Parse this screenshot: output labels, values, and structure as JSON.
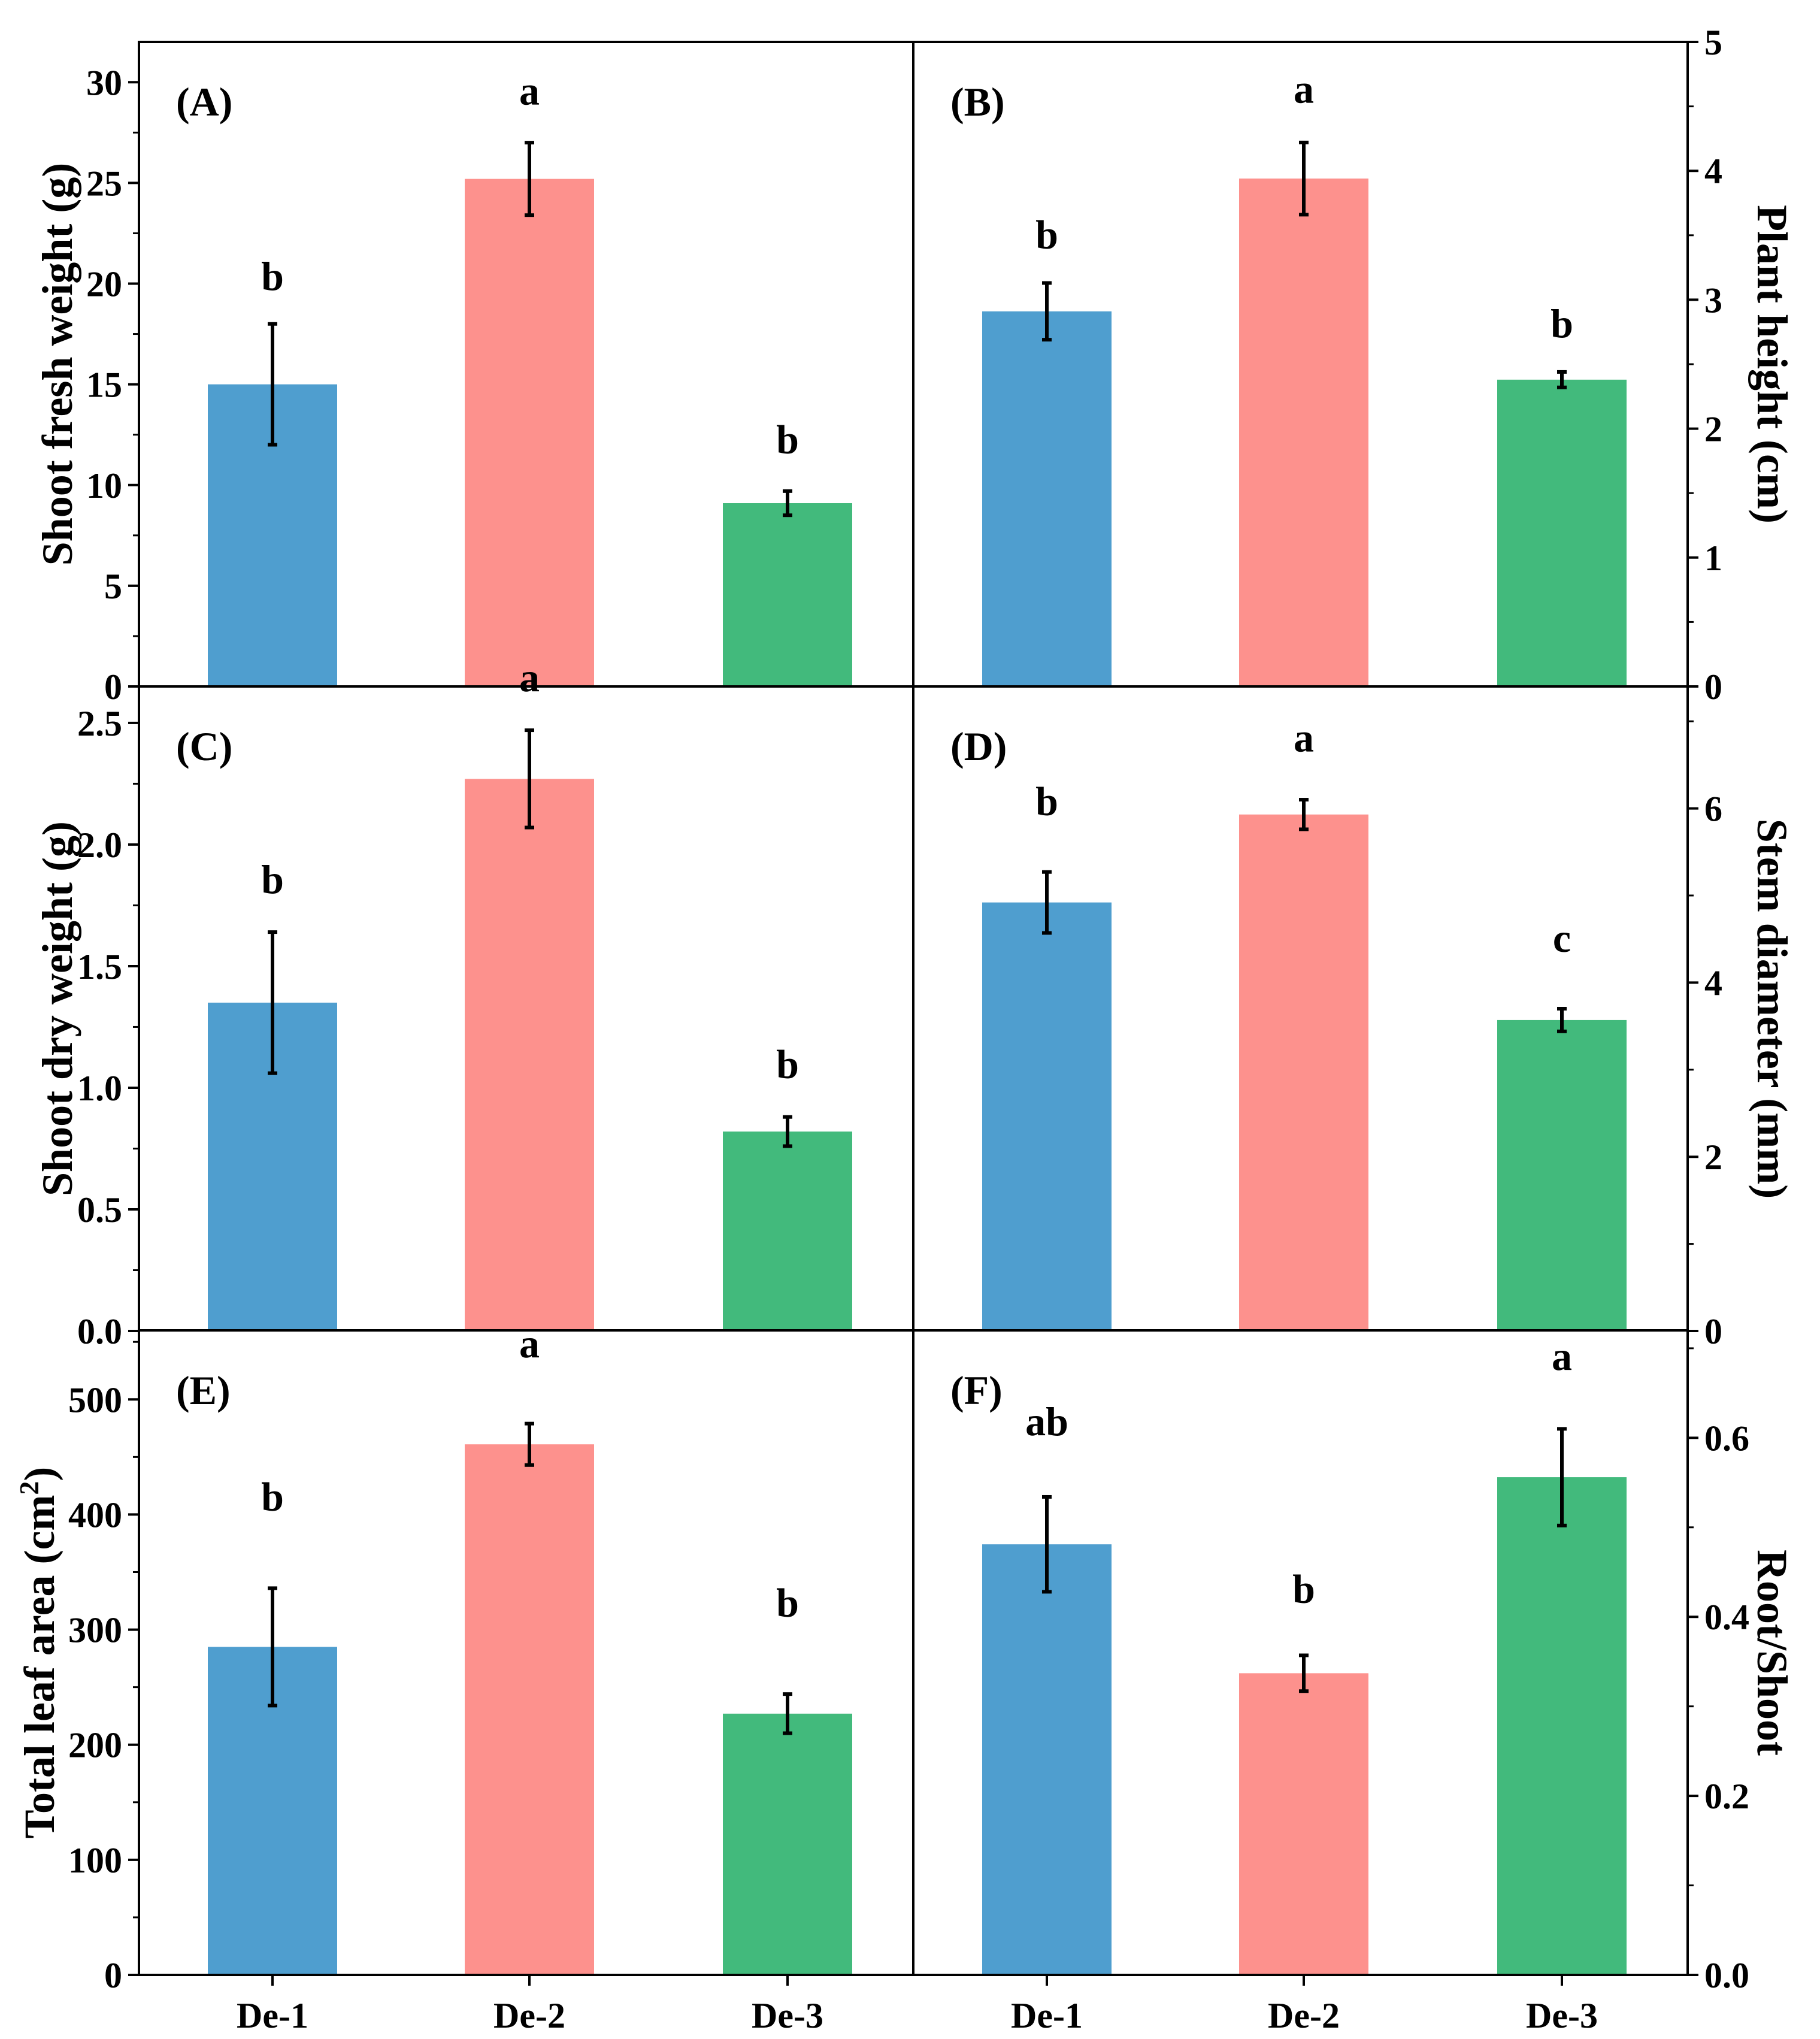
{
  "colors": {
    "De-1": "#4f9ecf",
    "De-2": "#fd918d",
    "De-3": "#42ba7c",
    "axis": "#000000"
  },
  "chart_data": [
    {
      "panel": "(A)",
      "type": "bar",
      "ylabel": "Shoot fresh weight (g)",
      "ylabel_sup": "",
      "ylabel_tail": "",
      "categories": [
        "De-1",
        "De-2",
        "De-3"
      ],
      "values": [
        15.0,
        25.2,
        9.1
      ],
      "errors": [
        3.0,
        1.8,
        0.6
      ],
      "letters": [
        "b",
        "a",
        "b"
      ],
      "letter_offsets": [
        2.4,
        2.6,
        2.6
      ],
      "ylim": [
        0,
        32
      ],
      "yticks": [
        0,
        5,
        10,
        15,
        20,
        25,
        30
      ],
      "yticklabels": [
        "0",
        "5",
        "10",
        "15",
        "20",
        "25",
        "30"
      ]
    },
    {
      "panel": "(B)",
      "type": "bar",
      "ylabel": "Plant height (cm)",
      "ylabel_sup": "",
      "ylabel_tail": "",
      "categories": [
        "De-1",
        "De-2",
        "De-3"
      ],
      "values": [
        2.91,
        3.94,
        2.38
      ],
      "errors": [
        0.22,
        0.28,
        0.06
      ],
      "letters": [
        "b",
        "a",
        "b"
      ],
      "letter_offsets": [
        0.38,
        0.42,
        0.38
      ],
      "ylim": [
        0,
        5
      ],
      "yticks": [
        0,
        1,
        2,
        3,
        4,
        5
      ],
      "yticklabels": [
        "0",
        "1",
        "2",
        "3",
        "4",
        "5"
      ]
    },
    {
      "panel": "(C)",
      "type": "bar",
      "ylabel": "Shoot dry weight (g)",
      "ylabel_sup": "",
      "ylabel_tail": "",
      "categories": [
        "De-1",
        "De-2",
        "De-3"
      ],
      "values": [
        1.35,
        2.27,
        0.82
      ],
      "errors": [
        0.29,
        0.2,
        0.06
      ],
      "letters": [
        "b",
        "a",
        "b"
      ],
      "letter_offsets": [
        0.22,
        0.22,
        0.22
      ],
      "ylim": [
        0,
        2.65
      ],
      "yticks": [
        0,
        0.5,
        1.0,
        1.5,
        2.0,
        2.5
      ],
      "yticklabels": [
        "0.0",
        "0.5",
        "1.0",
        "1.5",
        "2.0",
        "2.5"
      ]
    },
    {
      "panel": "(D)",
      "type": "bar",
      "ylabel": "Stem diameter (mm)",
      "ylabel_sup": "",
      "ylabel_tail": "",
      "categories": [
        "De-1",
        "De-2",
        "De-3"
      ],
      "values": [
        4.92,
        5.93,
        3.57
      ],
      "errors": [
        0.35,
        0.17,
        0.13
      ],
      "letters": [
        "b",
        "a",
        "c"
      ],
      "letter_offsets": [
        0.82,
        0.72,
        0.82
      ],
      "ylim": [
        0,
        7.4
      ],
      "yticks": [
        0,
        2,
        4,
        6
      ],
      "yticklabels": [
        "0",
        "2",
        "4",
        "6"
      ]
    },
    {
      "panel": "(E)",
      "type": "bar",
      "ylabel": "Total leaf area (cm",
      "ylabel_sup": "2",
      "ylabel_tail": ")",
      "categories": [
        "De-1",
        "De-2",
        "De-3"
      ],
      "values": [
        285,
        461,
        227
      ],
      "errors": [
        51,
        18,
        17
      ],
      "letters": [
        "b",
        "a",
        "b"
      ],
      "letter_offsets": [
        80,
        70,
        80
      ],
      "ylim": [
        0,
        560
      ],
      "yticks": [
        0,
        100,
        200,
        300,
        400,
        500
      ],
      "yticklabels": [
        "0",
        "100",
        "200",
        "300",
        "400",
        "500"
      ]
    },
    {
      "panel": "(F)",
      "type": "bar",
      "ylabel": "Root/Shoot",
      "ylabel_sup": "",
      "ylabel_tail": "",
      "categories": [
        "De-1",
        "De-2",
        "De-3"
      ],
      "values": [
        0.481,
        0.337,
        0.556
      ],
      "errors": [
        0.053,
        0.02,
        0.054
      ],
      "letters": [
        "ab",
        "b",
        "a"
      ],
      "letter_offsets": [
        0.085,
        0.075,
        0.082
      ],
      "ylim": [
        0,
        0.72
      ],
      "yticks": [
        0,
        0.2,
        0.4,
        0.6
      ],
      "yticklabels": [
        "0.0",
        "0.2",
        "0.4",
        "0.6"
      ]
    }
  ]
}
